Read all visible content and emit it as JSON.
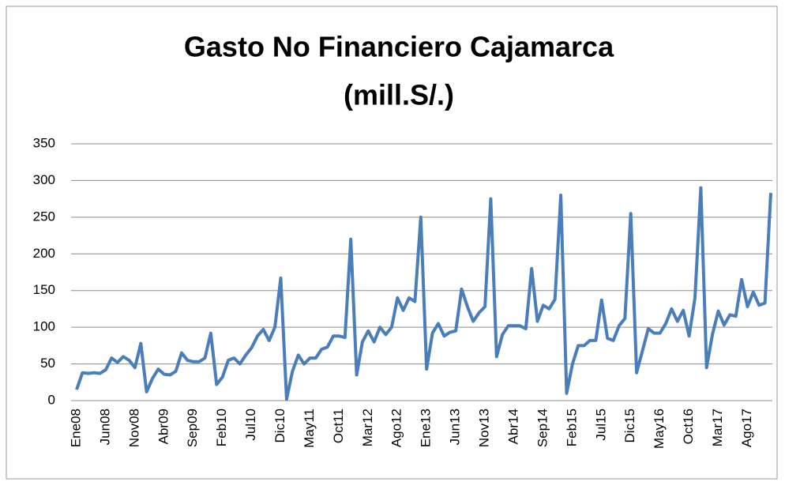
{
  "chart_data": {
    "type": "line",
    "title": "Gasto No Financiero Cajamarca",
    "subtitle": "(mill.S/.)",
    "categories": [
      "Ene08",
      null,
      null,
      null,
      null,
      "Jun08",
      null,
      null,
      null,
      null,
      "Nov08",
      null,
      null,
      null,
      null,
      "Abr09",
      null,
      null,
      null,
      null,
      "Sep09",
      null,
      null,
      null,
      null,
      "Feb10",
      null,
      null,
      null,
      null,
      "Jul10",
      null,
      null,
      null,
      null,
      "Dic10",
      null,
      null,
      null,
      null,
      "May11",
      null,
      null,
      null,
      null,
      "Oct11",
      null,
      null,
      null,
      null,
      "Mar12",
      null,
      null,
      null,
      null,
      "Ago12",
      null,
      null,
      null,
      null,
      "Ene13",
      null,
      null,
      null,
      null,
      "Jun13",
      null,
      null,
      null,
      null,
      "Nov13",
      null,
      null,
      null,
      null,
      "Abr14",
      null,
      null,
      null,
      null,
      "Sep14",
      null,
      null,
      null,
      null,
      "Feb15",
      null,
      null,
      null,
      null,
      "Jul15",
      null,
      null,
      null,
      null,
      "Dic15",
      null,
      null,
      null,
      null,
      "May16",
      null,
      null,
      null,
      null,
      "Oct16",
      null,
      null,
      null,
      null,
      "Mar17",
      null,
      null,
      null,
      null,
      "Ago17",
      null,
      null,
      null,
      null
    ],
    "values": [
      15,
      38,
      37,
      38,
      37,
      42,
      58,
      52,
      60,
      55,
      45,
      78,
      12,
      30,
      43,
      36,
      35,
      40,
      65,
      55,
      53,
      53,
      58,
      92,
      22,
      32,
      55,
      58,
      50,
      62,
      72,
      88,
      97,
      82,
      100,
      167,
      2,
      40,
      62,
      50,
      58,
      58,
      70,
      73,
      88,
      88,
      86,
      220,
      35,
      80,
      95,
      80,
      100,
      90,
      100,
      140,
      123,
      140,
      135,
      250,
      43,
      92,
      105,
      88,
      93,
      95,
      152,
      128,
      108,
      120,
      128,
      275,
      60,
      90,
      102,
      102,
      102,
      98,
      180,
      108,
      130,
      125,
      138,
      280,
      10,
      50,
      75,
      75,
      82,
      82,
      137,
      85,
      82,
      102,
      112,
      255,
      38,
      68,
      98,
      92,
      92,
      105,
      125,
      108,
      123,
      88,
      140,
      290,
      45,
      90,
      122,
      103,
      117,
      115,
      165,
      128,
      148,
      130,
      133,
      283
    ],
    "color": "#4a7ebb",
    "ylim": [
      0,
      350
    ],
    "yticks": [
      0,
      50,
      100,
      150,
      200,
      250,
      300,
      350
    ],
    "grid": true
  }
}
